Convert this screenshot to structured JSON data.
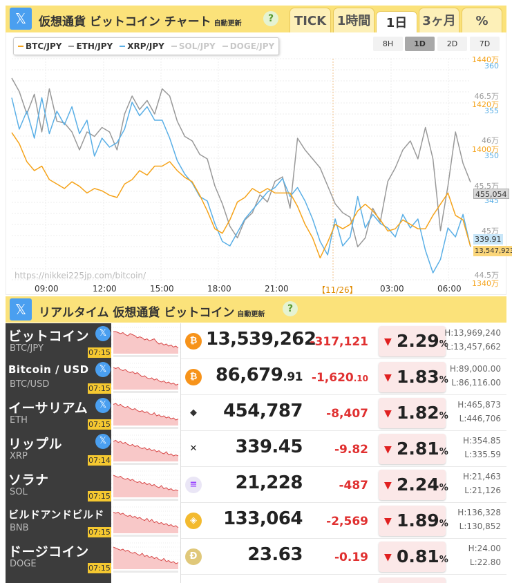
{
  "header": {
    "title": "仮想通貨 ビットコイン チャート",
    "auto_update": "自動更新",
    "help": "?",
    "x_icon": "𝕏"
  },
  "timeframe_tabs": [
    "TICK",
    "1時間",
    "1日",
    "3ヶ月",
    "%"
  ],
  "active_timeframe": "1日",
  "range_buttons": [
    "8H",
    "1D",
    "2D",
    "7D"
  ],
  "active_range": "1D",
  "watermark": "https://nikkei225jp.com/bitcoin/",
  "colors": {
    "btc": "#f5a31a",
    "eth": "#999999",
    "xrp": "#5aafe6",
    "header_bg": "#fbe27a",
    "name_bg": "#3c3c3c",
    "down": "#e03030"
  },
  "chart_data": {
    "type": "line",
    "legend": [
      {
        "name": "BTC/JPY",
        "color": "#f5a31a",
        "enabled": true
      },
      {
        "name": "ETH/JPY",
        "color": "#999999",
        "enabled": true
      },
      {
        "name": "XRP/JPY",
        "color": "#5aafe6",
        "enabled": true
      },
      {
        "name": "SOL/JPY",
        "color": "#cccccc",
        "enabled": false
      },
      {
        "name": "DOGE/JPY",
        "color": "#cccccc",
        "enabled": false
      }
    ],
    "x_ticks": [
      "09:00",
      "12:00",
      "15:00",
      "18:00",
      "21:00",
      "【11/26】",
      "03:00",
      "06:00"
    ],
    "y_axes": {
      "btc": {
        "ticks": [
          "1440万",
          "1420万",
          "1400万",
          "1340万"
        ],
        "range": [
          1340,
          1440
        ],
        "unit": "万円"
      },
      "eth": {
        "ticks": [
          "46.5万",
          "46万",
          "45.5万",
          "45万",
          "44.5万"
        ],
        "range": [
          44.5,
          47.0
        ],
        "unit": "万円"
      },
      "xrp": {
        "ticks": [
          "360",
          "355",
          "350",
          "345"
        ],
        "range": [
          336,
          360
        ]
      }
    },
    "current_labels": {
      "eth": "455,054",
      "xrp": "339.91",
      "btc": "13,547,923"
    },
    "series": [
      {
        "name": "BTC/JPY",
        "axis": "btc",
        "values": [
          1407,
          1402,
          1394,
          1390,
          1392,
          1386,
          1384,
          1382,
          1385,
          1383,
          1380,
          1382,
          1381,
          1379,
          1378,
          1384,
          1386,
          1390,
          1388,
          1392,
          1392,
          1394,
          1390,
          1387,
          1385,
          1379,
          1372,
          1364,
          1362,
          1368,
          1376,
          1378,
          1382,
          1380,
          1382,
          1380,
          1380,
          1380,
          1374,
          1366,
          1360,
          1351,
          1358,
          1366,
          1364,
          1366,
          1372,
          1375,
          1372,
          1368,
          1363,
          1364,
          1368,
          1366,
          1364,
          1364,
          1370,
          1375,
          1380,
          1370,
          1368,
          1356
        ]
      },
      {
        "name": "ETH/JPY",
        "axis": "eth",
        "values": [
          46.7,
          46.55,
          46.3,
          46.52,
          46.1,
          46.58,
          46.22,
          46.2,
          46.1,
          45.9,
          46.1,
          46.05,
          46.15,
          46.1,
          45.9,
          46.3,
          46.5,
          46.35,
          46.45,
          46.3,
          46.58,
          46.5,
          46.22,
          46.05,
          46.0,
          45.85,
          45.8,
          45.5,
          45.3,
          45.05,
          44.92,
          45.12,
          45.2,
          45.4,
          45.32,
          45.55,
          45.6,
          45.25,
          46.03,
          45.9,
          45.8,
          45.7,
          45.5,
          45.3,
          45.2,
          45.15,
          44.82,
          44.92,
          45.25,
          45.1,
          45.55,
          45.7,
          45.9,
          46.0,
          45.8,
          46.15,
          45.8,
          45.0,
          45.5,
          46.1,
          45.75,
          45.54
        ]
      },
      {
        "name": "XRP/JPY",
        "axis": "xrp",
        "values": [
          356.5,
          353.0,
          355.0,
          352.0,
          356.5,
          352.5,
          355.0,
          353.5,
          355.5,
          352.5,
          354.0,
          350.0,
          352.0,
          351.0,
          351.5,
          353.0,
          356.0,
          354.5,
          355.5,
          354.0,
          354.0,
          352.0,
          349.5,
          348.0,
          347.0,
          345.5,
          345.0,
          342.5,
          340.5,
          340.0,
          341.5,
          343.0,
          344.0,
          345.0,
          346.0,
          346.5,
          347.5,
          345.5,
          346.5,
          345.0,
          343.0,
          340.5,
          339.0,
          343.0,
          340.0,
          341.0,
          345.5,
          342.0,
          343.5,
          342.5,
          342.0,
          341.0,
          343.5,
          342.0,
          343.0,
          339.5,
          337.0,
          338.5,
          342.0,
          341.0,
          343.5,
          339.9
        ]
      }
    ]
  },
  "section2": {
    "title": "リアルタイム 仮想通貨 ビットコイン",
    "auto_update": "自動更新",
    "help": "?",
    "x_icon": "𝕏"
  },
  "rows": [
    {
      "name": "ビットコイン",
      "symbol": "BTC/JPY",
      "time": "07:15",
      "has_x": true,
      "icon": "₿",
      "icon_name": "bitcoin-icon",
      "icon_bg": "#f7931a",
      "icon_fg": "#ffffff",
      "price": "13,539,262",
      "price_dec": "",
      "change": "-317,121",
      "change_dec": "",
      "pct": "2.29",
      "high": "H:13,969,240",
      "low": "L:13,457,662"
    },
    {
      "name": "Bitcoin / USD",
      "symbol": "BTC/USD",
      "time": "07:15",
      "has_x": true,
      "icon": "₿",
      "icon_name": "bitcoin-icon",
      "icon_bg": "#f7931a",
      "icon_fg": "#ffffff",
      "price": "86,679",
      "price_dec": ".91",
      "change": "-1,620",
      "change_dec": ".10",
      "pct": "1.83",
      "high": "H:89,000.00",
      "low": "L:86,116.00"
    },
    {
      "name": "イーサリアム",
      "symbol": "ETH",
      "time": "07:15",
      "has_x": true,
      "icon": "◆",
      "icon_name": "ethereum-icon",
      "icon_bg": "#ffffff",
      "icon_fg": "#333333",
      "price": "454,787",
      "price_dec": "",
      "change": "-8,407",
      "change_dec": "",
      "pct": "1.82",
      "high": "H:465,873",
      "low": "L:446,706"
    },
    {
      "name": "リップル",
      "symbol": "XRP",
      "time": "07:14",
      "has_x": true,
      "icon": "✕",
      "icon_name": "xrp-icon",
      "icon_bg": "#ffffff",
      "icon_fg": "#222222",
      "price": "339.45",
      "price_dec": "",
      "change": "-9.82",
      "change_dec": "",
      "pct": "2.81",
      "high": "H:354.85",
      "low": "L:335.59"
    },
    {
      "name": "ソラナ",
      "symbol": "SOL",
      "time": "07:15",
      "has_x": false,
      "icon": "≡",
      "icon_name": "solana-icon",
      "icon_bg": "#eae6f6",
      "icon_fg": "#9945ff",
      "price": "21,228",
      "price_dec": "",
      "change": "-487",
      "change_dec": "",
      "pct": "2.24",
      "high": "H:21,463",
      "low": "L:21,126"
    },
    {
      "name": "ビルドアンドビルド",
      "symbol": "BNB",
      "time": "07:15",
      "has_x": false,
      "icon": "◈",
      "icon_name": "bnb-icon",
      "icon_bg": "#f3ba2f",
      "icon_fg": "#ffffff",
      "price": "133,064",
      "price_dec": "",
      "change": "-2,569",
      "change_dec": "",
      "pct": "1.89",
      "high": "H:136,328",
      "low": "L:130,852"
    },
    {
      "name": "ドージコイン",
      "symbol": "DOGE",
      "time": "07:15",
      "has_x": false,
      "icon": "Ð",
      "icon_name": "doge-icon",
      "icon_bg": "#e0c87a",
      "icon_fg": "#ffffff",
      "price": "23.63",
      "price_dec": "",
      "change": "-0.19",
      "change_dec": "",
      "pct": "0.81",
      "high": "H:24.00",
      "low": "L:22.80"
    }
  ]
}
